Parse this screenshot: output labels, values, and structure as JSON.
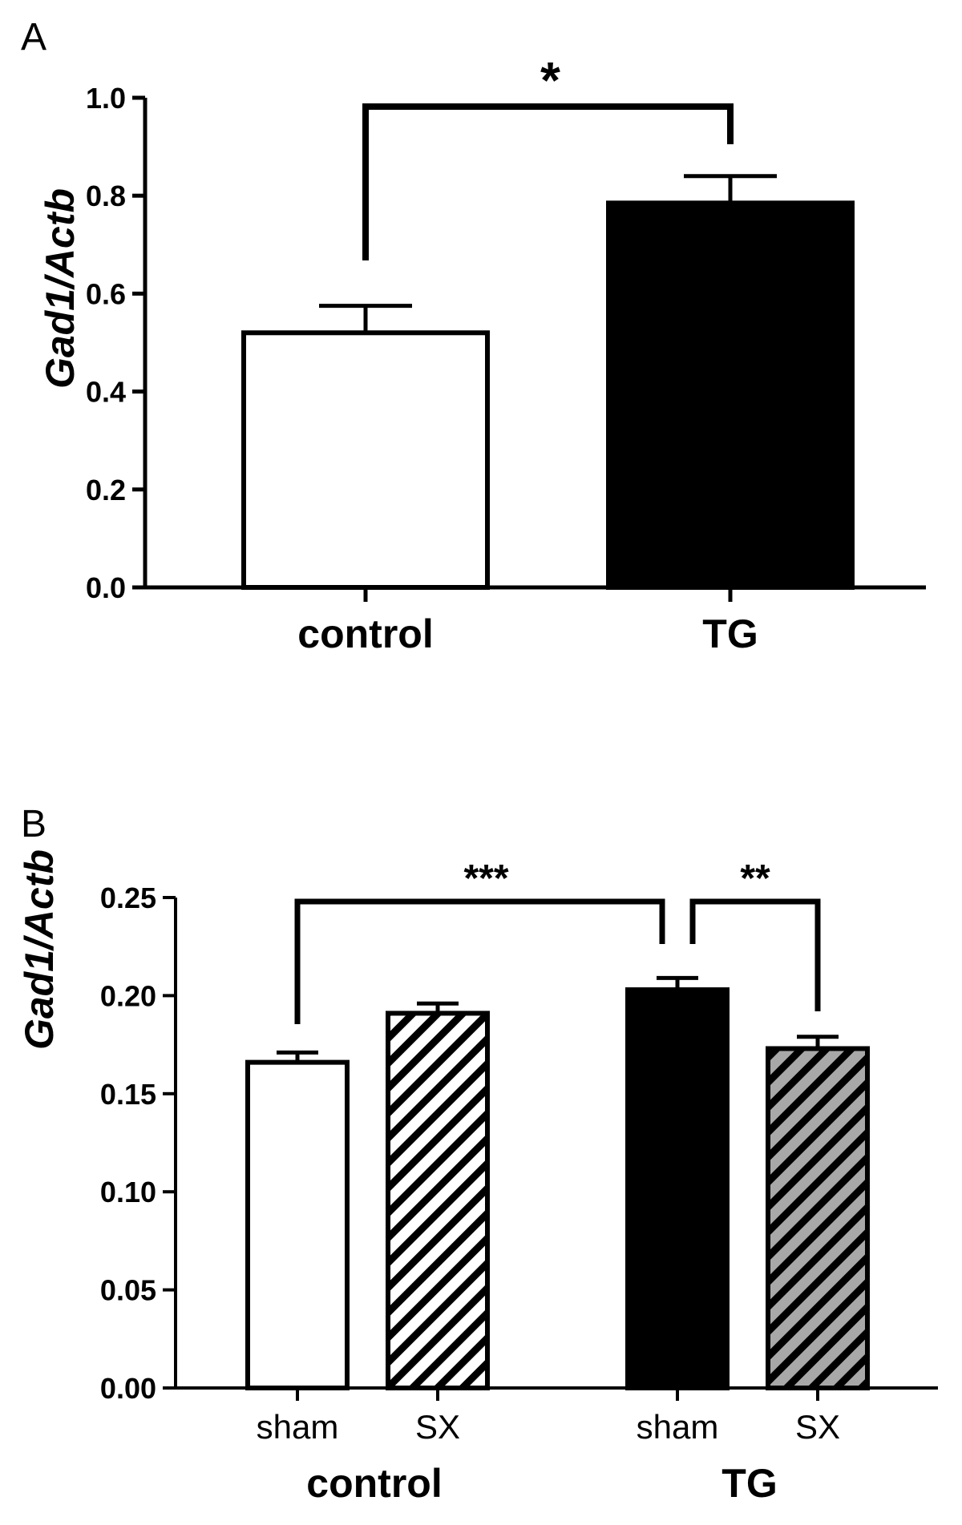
{
  "chart_data": [
    {
      "panel": "A",
      "type": "bar",
      "ylabel": "Gad1/Actb",
      "ylim": [
        0,
        1.0
      ],
      "yticks": [
        "0.0",
        "0.2",
        "0.4",
        "0.6",
        "0.8",
        "1.0"
      ],
      "categories": [
        "control",
        "TG"
      ],
      "values": [
        0.52,
        0.785
      ],
      "errors": [
        0.055,
        0.055
      ],
      "fills": [
        "white",
        "black"
      ],
      "significance": [
        {
          "from": 0,
          "to": 1,
          "label": "*"
        }
      ]
    },
    {
      "panel": "B",
      "type": "bar",
      "ylabel": "Gad1/Actb",
      "ylim": [
        0,
        0.25
      ],
      "yticks": [
        "0.00",
        "0.05",
        "0.10",
        "0.15",
        "0.20",
        "0.25"
      ],
      "categories": [
        "sham",
        "SX",
        "sham",
        "SX"
      ],
      "groups": [
        "control",
        "TG"
      ],
      "values": [
        0.166,
        0.191,
        0.203,
        0.173
      ],
      "errors": [
        0.005,
        0.005,
        0.006,
        0.006
      ],
      "fills": [
        "white",
        "hatch-white",
        "black",
        "hatch-gray"
      ],
      "significance": [
        {
          "from": 0,
          "to": 2,
          "label": "***"
        },
        {
          "from": 2,
          "to": 3,
          "label": "**"
        }
      ]
    }
  ]
}
